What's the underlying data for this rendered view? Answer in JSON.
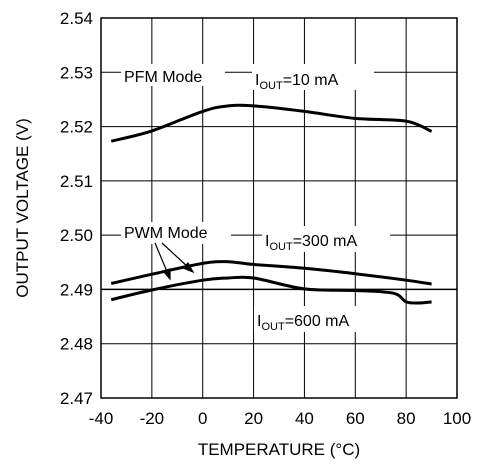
{
  "chart_data": {
    "type": "line",
    "title": "",
    "xlabel": "TEMPERATURE (°C)",
    "ylabel": "OUTPUT VOLTAGE (V)",
    "xlim": [
      -40,
      100
    ],
    "ylim": [
      2.47,
      2.54
    ],
    "x_ticks": [
      "-40",
      "-20",
      "0",
      "20",
      "40",
      "60",
      "80",
      "100"
    ],
    "y_ticks": [
      "2.54",
      "2.53",
      "2.52",
      "2.51",
      "2.50",
      "2.49",
      "2.48",
      "2.47"
    ],
    "grid": true,
    "series": [
      {
        "name": "PFM Mode, IOUT=10 mA",
        "x": [
          -36,
          -20,
          0,
          10,
          20,
          40,
          60,
          80,
          90
        ],
        "y": [
          2.5173,
          2.5192,
          2.5228,
          2.5238,
          2.5238,
          2.5228,
          2.5215,
          2.521,
          2.5191
        ]
      },
      {
        "name": "PWM Mode, IOUT=300 mA",
        "x": [
          -36,
          -20,
          0,
          10,
          20,
          40,
          60,
          80,
          90
        ],
        "y": [
          2.4911,
          2.4928,
          2.4948,
          2.4951,
          2.4946,
          2.4939,
          2.4929,
          2.4917,
          2.491
        ]
      },
      {
        "name": "PWM Mode, IOUT=600 mA",
        "x": [
          -36,
          -20,
          0,
          10,
          20,
          40,
          60,
          75,
          80,
          85,
          90
        ],
        "y": [
          2.4881,
          2.4899,
          2.4917,
          2.4921,
          2.4921,
          2.4901,
          2.4898,
          2.4893,
          2.4877,
          2.4875,
          2.4877
        ]
      }
    ],
    "annotations": {
      "pfm_mode": "PFM Mode",
      "pwm_mode": "PWM Mode",
      "iout_10": {
        "main": "I",
        "sub": "OUT",
        "rest": "=10 mA"
      },
      "iout_300": {
        "main": "I",
        "sub": "OUT",
        "rest": "=300 mA"
      },
      "iout_600": {
        "main": "I",
        "sub": "OUT",
        "rest": "=600 mA"
      }
    }
  }
}
